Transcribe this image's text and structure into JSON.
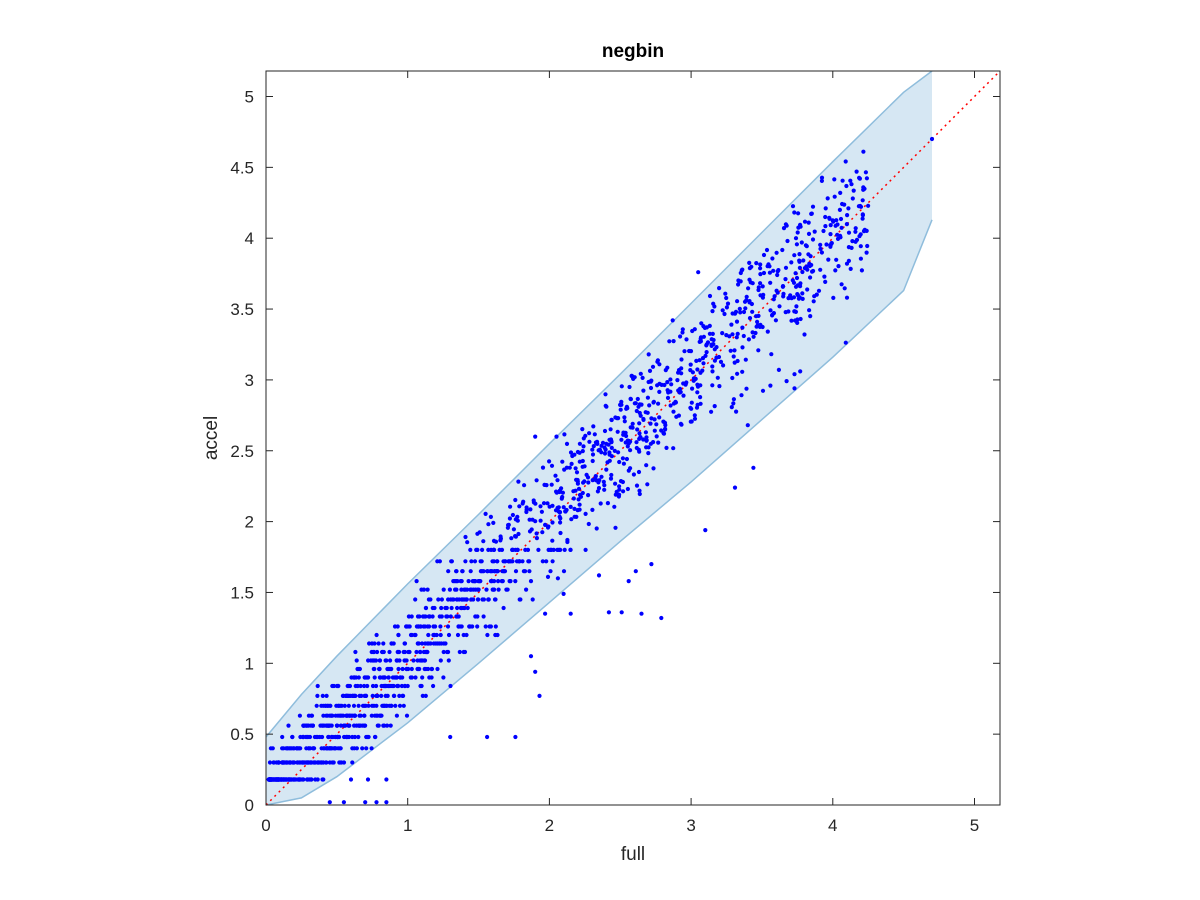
{
  "chart_data": {
    "type": "scatter",
    "title": "negbin",
    "xlabel": "full",
    "ylabel": "accel",
    "xlim": [
      0,
      5.18
    ],
    "ylim": [
      0,
      5.18
    ],
    "xticks": [
      0,
      1,
      2,
      3,
      4,
      5
    ],
    "yticks": [
      0,
      0.5,
      1,
      1.5,
      2,
      2.5,
      3,
      3.5,
      4,
      4.5,
      5
    ],
    "xtick_labels": [
      "0",
      "1",
      "2",
      "3",
      "4",
      "5"
    ],
    "ytick_labels": [
      "0",
      "0.5",
      "1",
      "1.5",
      "2",
      "2.5",
      "3",
      "3.5",
      "4",
      "4.5",
      "5"
    ],
    "grid": false,
    "box": true,
    "colors": {
      "points": "#0000ff",
      "band_fill": "#d6e7f3",
      "band_edge": "#8fbddc",
      "reference_line": "#ff0000",
      "axes": "#262626"
    },
    "reference_line": {
      "style": "dotted",
      "x": [
        0,
        5.18
      ],
      "y": [
        0,
        5.18
      ]
    },
    "band": {
      "x": [
        0,
        0.25,
        0.5,
        1,
        1.5,
        2,
        2.5,
        3,
        3.5,
        4,
        4.5,
        4.7
      ],
      "upper": [
        0.48,
        0.78,
        1.05,
        1.56,
        2.05,
        2.55,
        3.04,
        3.54,
        4.04,
        4.54,
        5.03,
        5.22
      ],
      "lower": [
        0.0,
        0.05,
        0.2,
        0.58,
        1.0,
        1.43,
        1.86,
        2.28,
        2.72,
        3.16,
        3.63,
        4.13
      ]
    },
    "scatter_generator": {
      "n": 1700,
      "seed": 7,
      "x_range": [
        0.02,
        4.25
      ],
      "discrete_levels": [
        0.18,
        0.3,
        0.4,
        0.48,
        0.56,
        0.63,
        0.7,
        0.77,
        0.84,
        0.9,
        0.96,
        1.02,
        1.08,
        1.14,
        1.2,
        1.26,
        1.33,
        1.39,
        1.45,
        1.52,
        1.58,
        1.65,
        1.72,
        1.8
      ]
    },
    "points": [
      [
        3.05,
        3.76
      ],
      [
        2.05,
        2.6
      ],
      [
        1.9,
        2.6
      ],
      [
        3.95,
        4.21
      ],
      [
        4.22,
        4.35
      ],
      [
        4.11,
        4.21
      ],
      [
        4.7,
        4.7
      ],
      [
        3.74,
        4.0
      ],
      [
        3.68,
        3.98
      ],
      [
        3.81,
        3.95
      ],
      [
        4.05,
        4.2
      ],
      [
        4.1,
        3.82
      ],
      [
        4.1,
        3.58
      ],
      [
        4.22,
        4.05
      ],
      [
        2.87,
        3.42
      ],
      [
        3.44,
        2.38
      ],
      [
        3.31,
        2.24
      ],
      [
        3.73,
        2.94
      ],
      [
        3.73,
        3.04
      ],
      [
        3.77,
        3.06
      ],
      [
        2.65,
        1.35
      ],
      [
        2.79,
        1.32
      ],
      [
        2.42,
        1.36
      ],
      [
        2.51,
        1.36
      ],
      [
        3.1,
        1.94
      ],
      [
        2.1,
        1.49
      ],
      [
        2.15,
        1.35
      ],
      [
        1.99,
        1.61
      ],
      [
        2.06,
        1.6
      ],
      [
        1.97,
        1.35
      ],
      [
        1.9,
        0.94
      ],
      [
        1.87,
        1.05
      ],
      [
        1.93,
        0.77
      ],
      [
        1.76,
        0.48
      ],
      [
        1.56,
        0.48
      ],
      [
        1.3,
        0.48
      ],
      [
        0.85,
        0.02
      ],
      [
        0.78,
        0.02
      ],
      [
        0.7,
        0.02
      ],
      [
        0.55,
        0.02
      ],
      [
        0.45,
        0.02
      ],
      [
        0.6,
        0.18
      ],
      [
        0.72,
        0.18
      ],
      [
        0.85,
        0.18
      ],
      [
        2.35,
        1.62
      ],
      [
        2.61,
        1.65
      ],
      [
        2.72,
        1.7
      ],
      [
        2.56,
        1.58
      ],
      [
        3.4,
        2.68
      ],
      [
        3.56,
        2.96
      ]
    ]
  }
}
